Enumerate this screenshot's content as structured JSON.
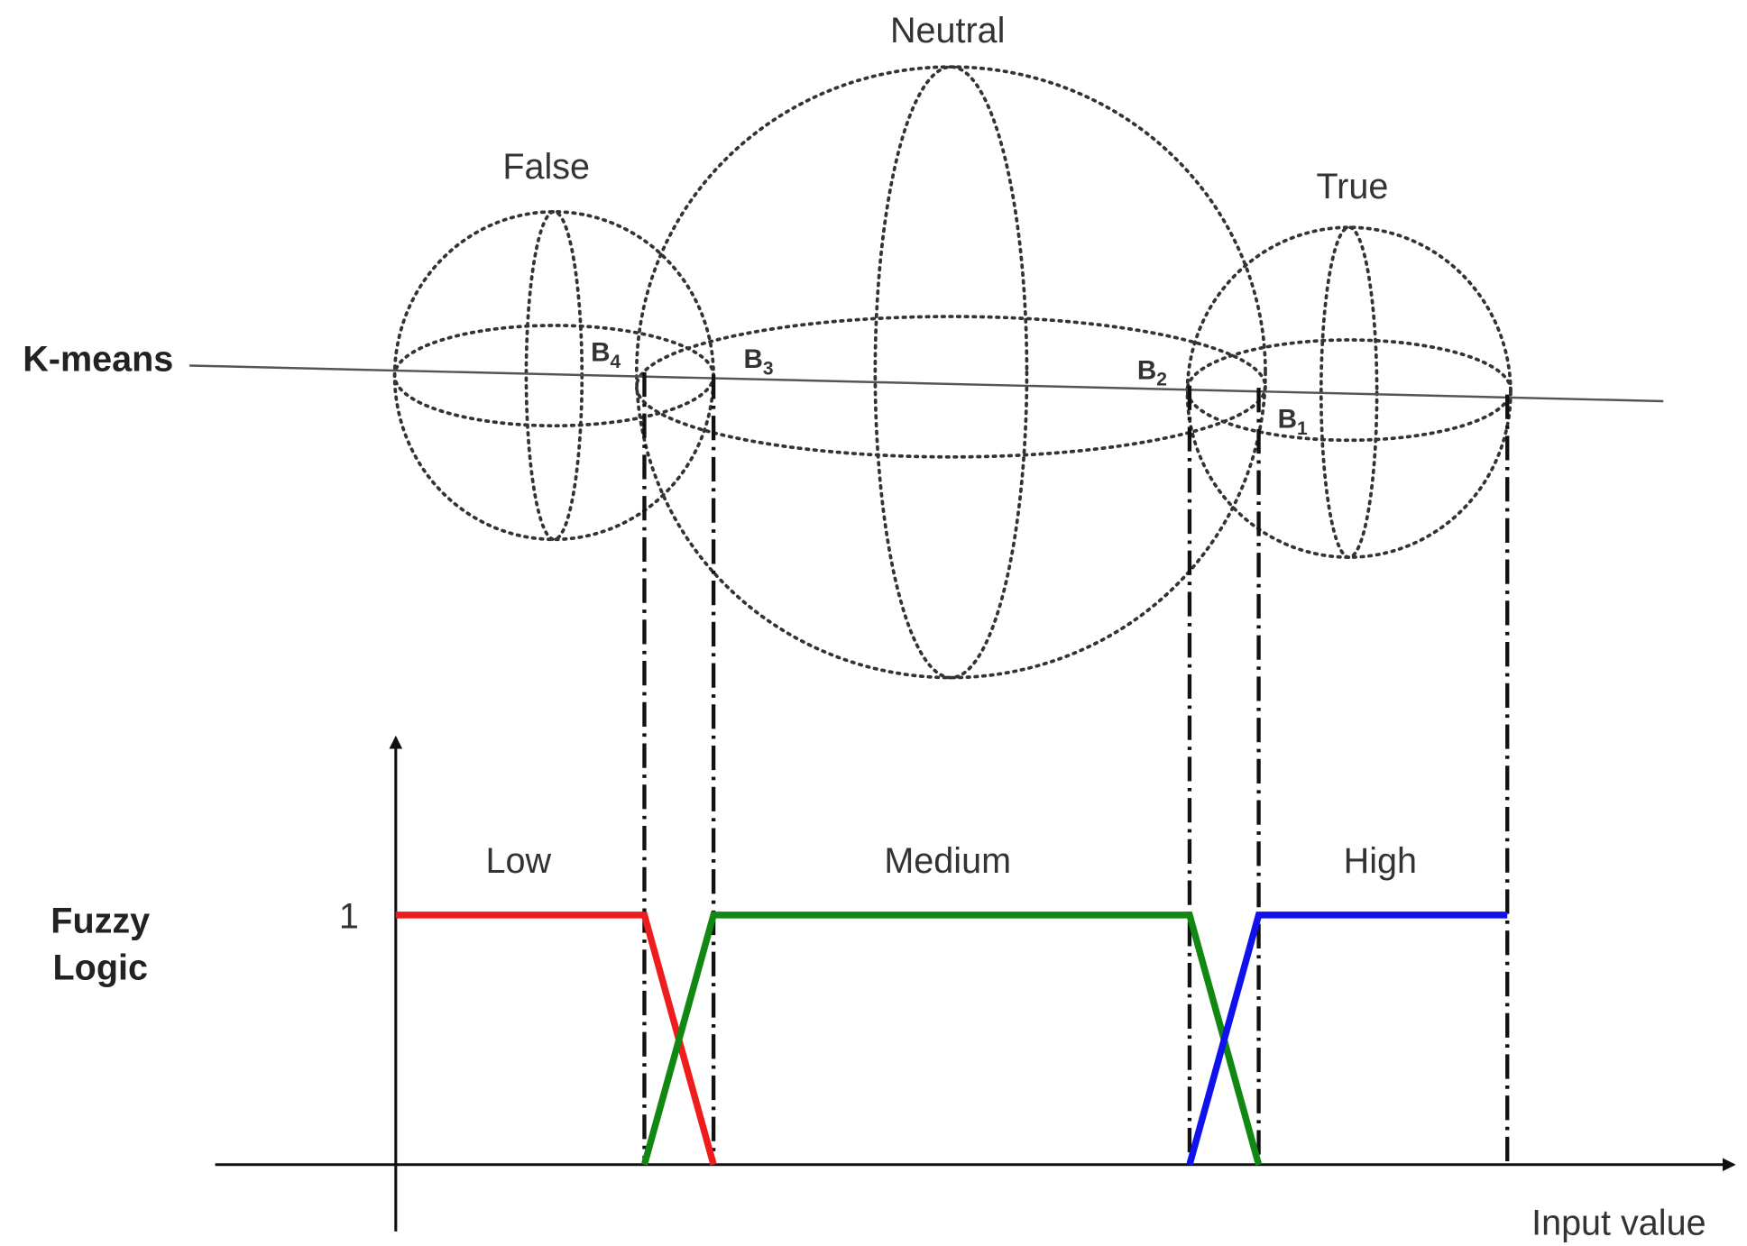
{
  "clusters": [
    {
      "label": "False"
    },
    {
      "label": "Neutral"
    },
    {
      "label": "True"
    }
  ],
  "k_means": {
    "label": "K-means",
    "boundaries": [
      {
        "letter": "B",
        "subscript": "4"
      },
      {
        "letter": "B",
        "subscript": "3"
      },
      {
        "letter": "B",
        "subscript": "2"
      },
      {
        "letter": "B",
        "subscript": "1"
      }
    ]
  },
  "fuzzy": {
    "axis_label": [
      "Fuzzy",
      "Logic"
    ],
    "y_tick": "1",
    "x_axis_label": "Input value",
    "sets": [
      {
        "label": "Low"
      },
      {
        "label": "Medium"
      },
      {
        "label": "High"
      }
    ]
  }
}
